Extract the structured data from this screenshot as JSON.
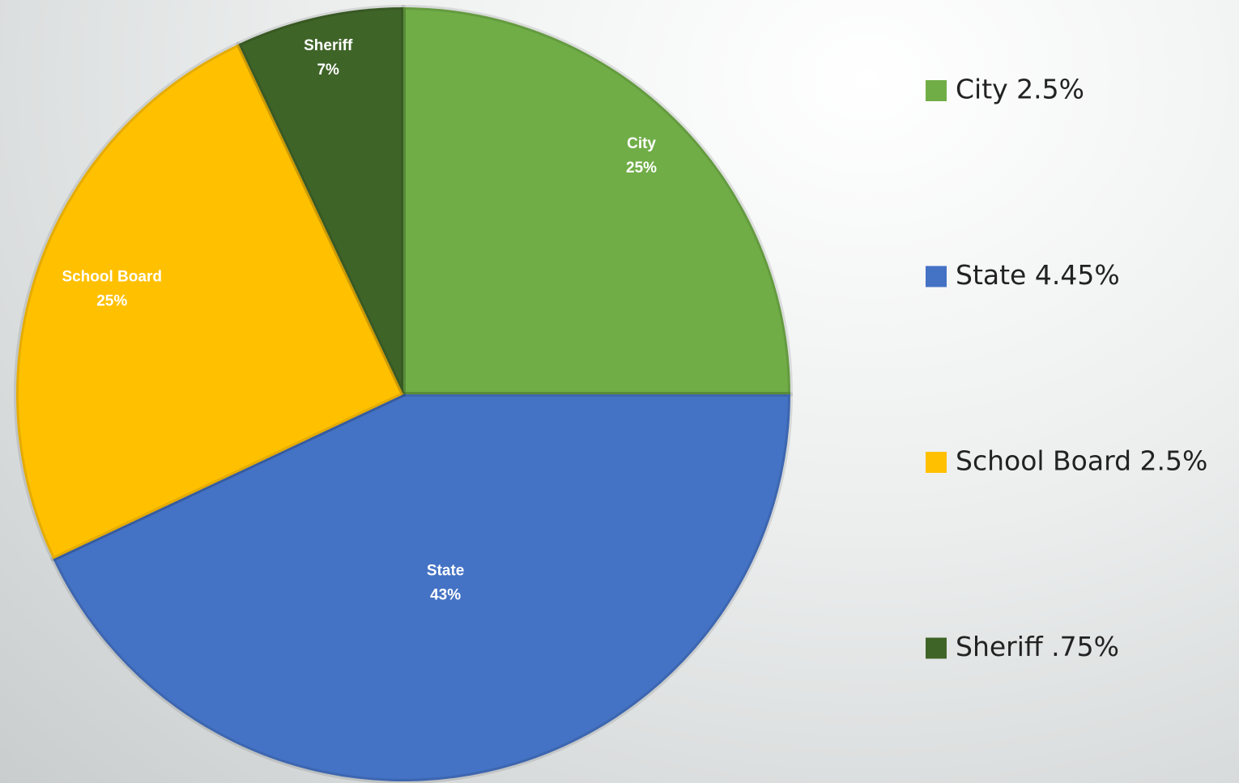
{
  "chart_data": {
    "type": "pie",
    "categories": [
      "City 2.5%",
      "State 4.45%",
      "School Board 2.5%",
      "Sheriff .75%"
    ],
    "slice_names": [
      "City",
      "State",
      "School Board",
      "Sheriff"
    ],
    "values": [
      25,
      43,
      25,
      7
    ],
    "value_labels": [
      "25%",
      "43%",
      "25%",
      "7%"
    ],
    "colors": [
      "#70ad47",
      "#4472c4",
      "#ffc000",
      "#3f6428"
    ],
    "legend": "right"
  }
}
